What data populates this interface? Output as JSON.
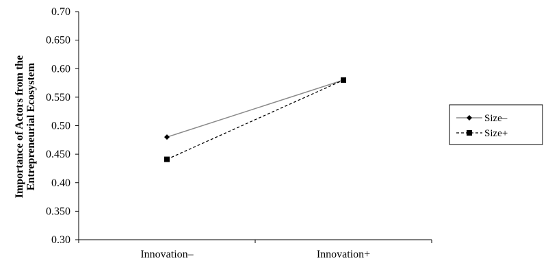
{
  "chart_data": {
    "type": "line",
    "categories": [
      "Innovation–",
      "Innovation+"
    ],
    "series": [
      {
        "name": "Size–",
        "values": [
          0.48,
          0.58
        ],
        "color": "#8a8a8a",
        "line_style": "solid",
        "marker": "diamond"
      },
      {
        "name": "Size+",
        "values": [
          0.441,
          0.58
        ],
        "color": "#000000",
        "line_style": "dashed",
        "marker": "square"
      }
    ],
    "ylim": [
      0.3,
      0.7
    ],
    "yticks": [
      0.3,
      0.35,
      0.4,
      0.45,
      0.5,
      0.55,
      0.6,
      0.65,
      0.7
    ],
    "ytick_labels": [
      "0.30",
      "0.350",
      "0.40",
      "0.450",
      "0.50",
      "0.550",
      "0.60",
      "0.650",
      "0.70"
    ],
    "ylabel_lines": [
      "Importance of Actors from the",
      "Entrepreneurial Ecosystem"
    ],
    "xlabel": "",
    "title": "",
    "grid": false,
    "legend_position": "right"
  }
}
